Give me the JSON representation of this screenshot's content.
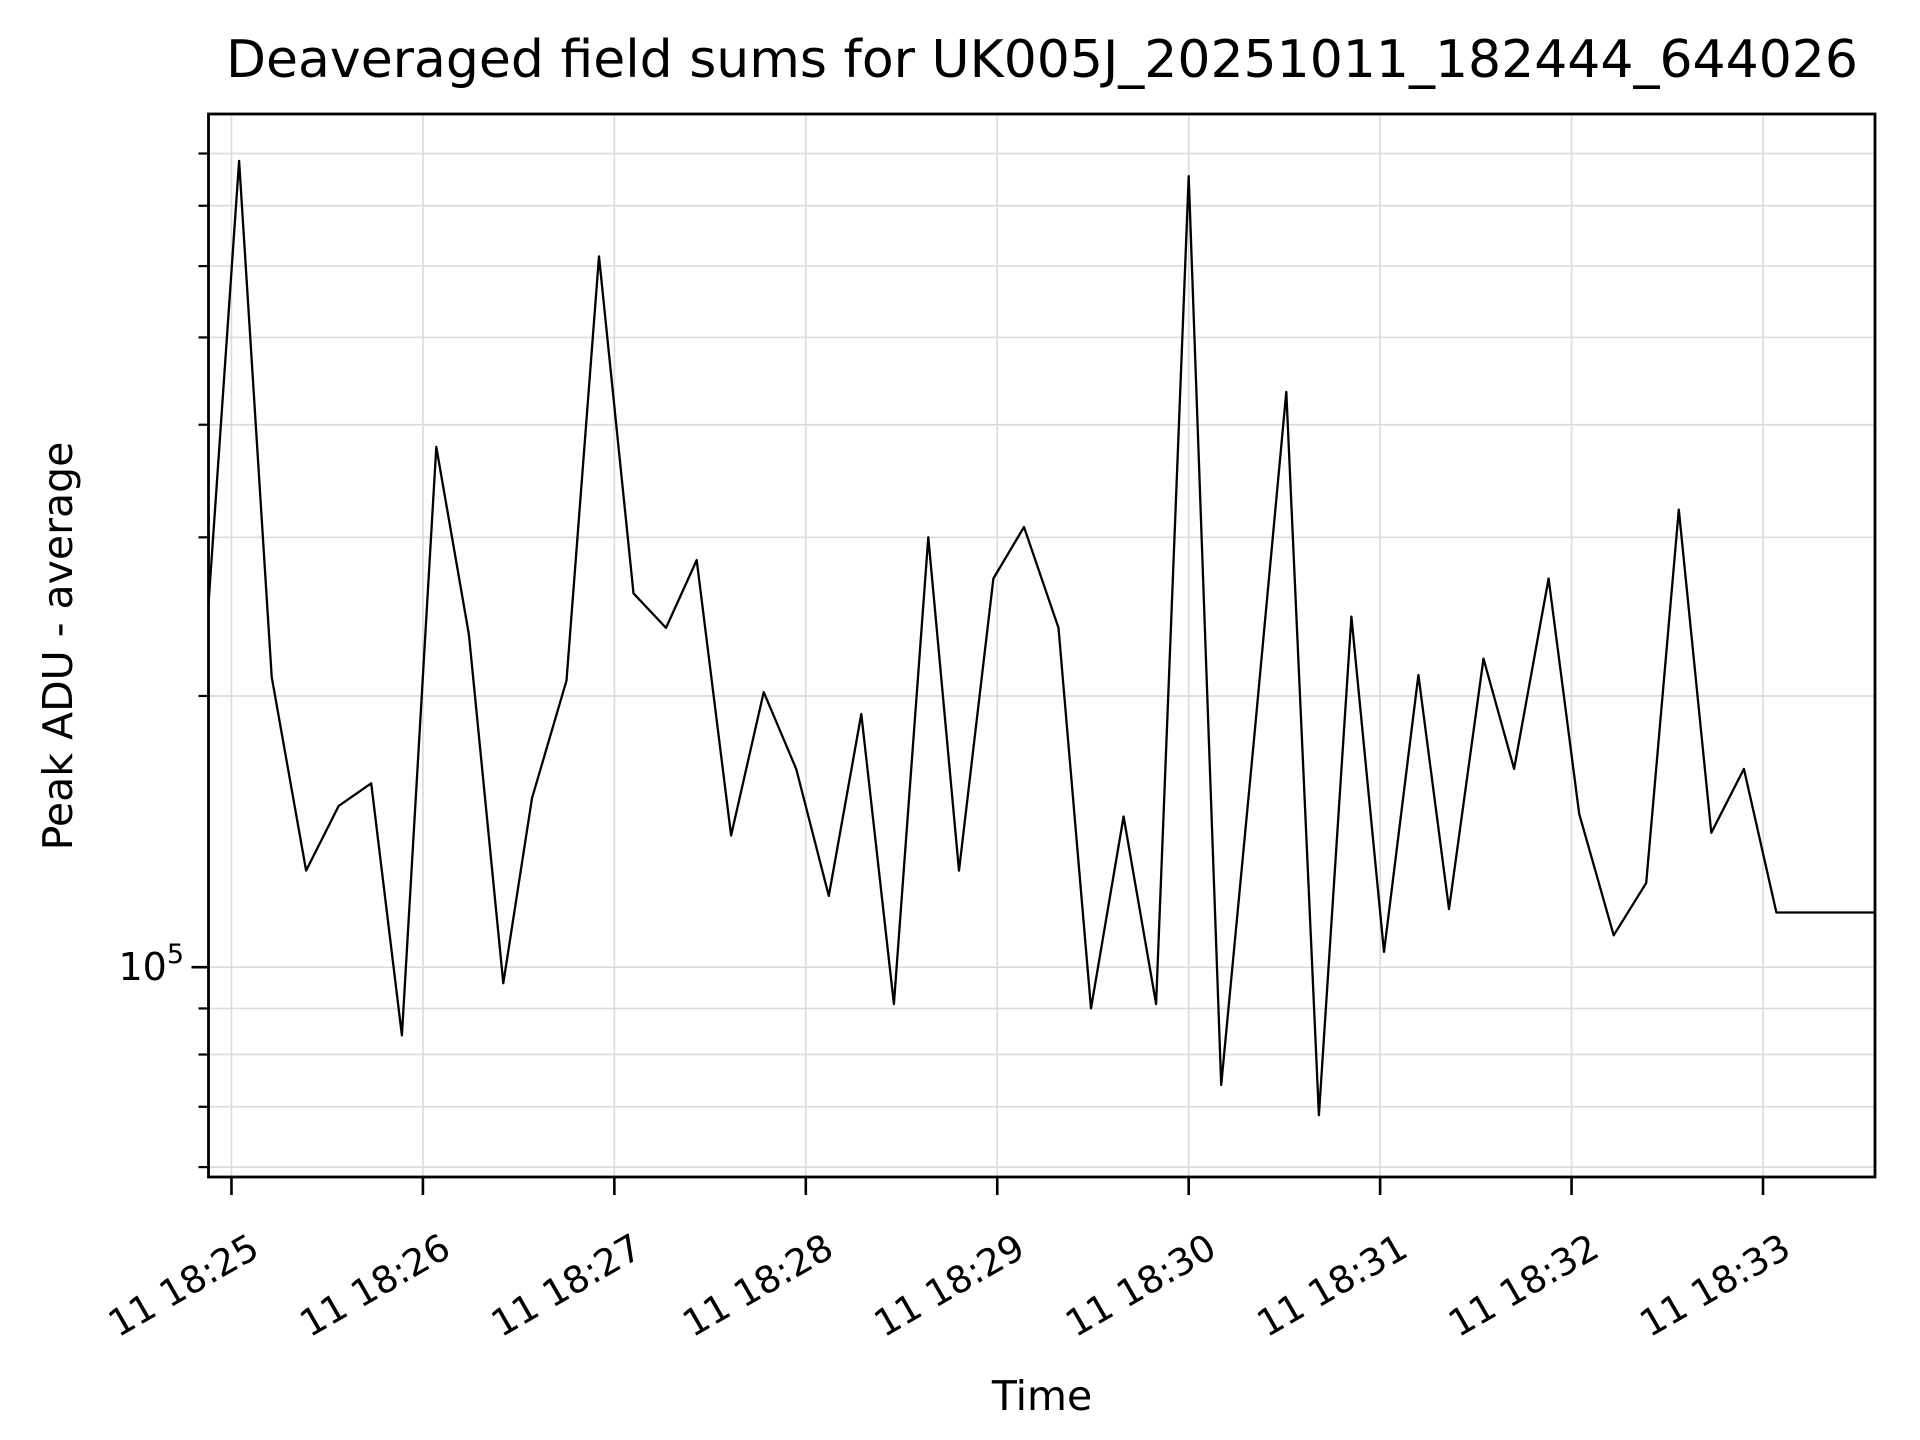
{
  "title": "Deaveraged field sums for UK005J_20251011_182444_644026",
  "axes": {
    "x_label": "Time",
    "y_label": "Peak ADU - average"
  },
  "chart_data": {
    "type": "line",
    "title": "Deaveraged field sums for UK005J_20251011_182444_644026",
    "xlabel": "Time",
    "ylabel": "Peak ADU - average",
    "yscale": "log",
    "grid": true,
    "legend": false,
    "line_color": "#000000",
    "grid_color": "#dcdcdc",
    "xlim_minutes_after_18_24": [
      0.88,
      9.585
    ],
    "ylim": [
      58500,
      885000
    ],
    "x_tick_minutes": [
      1,
      2,
      3,
      4,
      5,
      6,
      7,
      8,
      9
    ],
    "x_tick_labels": [
      "11 18:25",
      "11 18:26",
      "11 18:27",
      "11 18:28",
      "11 18:29",
      "11 18:30",
      "11 18:31",
      "11 18:32",
      "11 18:33"
    ],
    "y_major_ticks": [
      {
        "value": 100000,
        "label_base": "10",
        "label_exp": "5"
      }
    ],
    "y_minor_ticks": [
      60000,
      70000,
      80000,
      90000,
      200000,
      300000,
      400000,
      500000,
      600000,
      700000,
      800000
    ],
    "series": [
      {
        "name": "Peak ADU - average",
        "x_minutes": [
          0.88,
          1.04,
          1.21,
          1.39,
          1.56,
          1.73,
          1.89,
          2.07,
          2.24,
          2.42,
          2.57,
          2.75,
          2.92,
          3.1,
          3.27,
          3.43,
          3.61,
          3.78,
          3.95,
          4.12,
          4.29,
          4.46,
          4.64,
          4.8,
          4.98,
          5.14,
          5.32,
          5.49,
          5.66,
          5.83,
          6.0,
          6.17,
          6.34,
          6.51,
          6.68,
          6.85,
          7.02,
          7.2,
          7.36,
          7.54,
          7.7,
          7.88,
          8.04,
          8.22,
          8.39,
          8.56,
          8.73,
          8.9,
          9.07,
          9.24,
          9.41,
          9.585
        ],
        "values": [
          253000,
          785000,
          210000,
          128000,
          151000,
          160000,
          84000,
          378000,
          234000,
          96000,
          154000,
          208000,
          615000,
          260000,
          238000,
          283000,
          140000,
          202000,
          166000,
          120000,
          191000,
          91000,
          300000,
          128000,
          270000,
          308000,
          238000,
          90000,
          147000,
          91000,
          755000,
          74000,
          178000,
          435000,
          68500,
          245000,
          104000,
          211000,
          116000,
          220000,
          166000,
          270000,
          148000,
          108500,
          124000,
          322000,
          141000,
          166000,
          115000,
          115000,
          115000,
          115000
        ]
      }
    ]
  }
}
